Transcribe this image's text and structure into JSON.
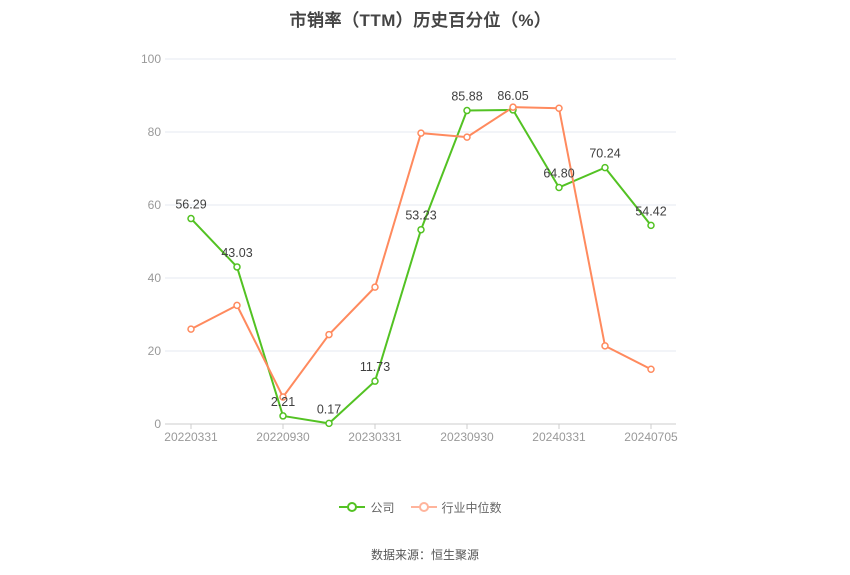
{
  "title": "市销率（TTM）历史百分位（%）",
  "footer": {
    "source_note": "数据来源：恒生聚源"
  },
  "legend": {
    "position": "bottom-center",
    "items": [
      {
        "label": "公司",
        "marker_color": "#53c223"
      },
      {
        "label": "行业中位数",
        "marker_color": "#ffb49c"
      }
    ]
  },
  "style": {
    "company_color": "#53c223",
    "industry_color": "#ff8a5e",
    "grid_color": "#e5eaf1",
    "axis_color": "#cccccc",
    "axis_label_color": "#999999",
    "data_label_color": "#404040",
    "title_color": "#444444"
  },
  "chart_data": {
    "type": "line",
    "title": "市销率（TTM）历史百分位（%）",
    "x_tick_labels": [
      "20220331",
      "20220930",
      "20230331",
      "20230930",
      "20240331",
      "20240705"
    ],
    "point_count": 11,
    "tick_point_indices": [
      0,
      2,
      4,
      6,
      8,
      10
    ],
    "y_ticks": [
      0,
      20,
      40,
      60,
      80,
      100
    ],
    "ylim": [
      0,
      100
    ],
    "grid": true,
    "legend_position": "bottom",
    "series": [
      {
        "name": "公司",
        "color": "#53c223",
        "show_point_labels": true,
        "values": [
          56.29,
          43.03,
          2.21,
          0.17,
          11.73,
          53.23,
          85.88,
          86.05,
          64.8,
          70.24,
          54.42
        ],
        "point_labels": [
          "56.29",
          "43.03",
          "2.21",
          "0.17",
          "11.73",
          "53.23",
          "85.88",
          "86.05",
          "64.80",
          "70.24",
          "54.42"
        ]
      },
      {
        "name": "行业中位数",
        "color": "#ff8a5e",
        "show_point_labels": false,
        "values": [
          26.0,
          32.5,
          7.4,
          24.5,
          37.5,
          79.7,
          78.6,
          86.8,
          86.5,
          21.4,
          15.0
        ]
      }
    ]
  }
}
